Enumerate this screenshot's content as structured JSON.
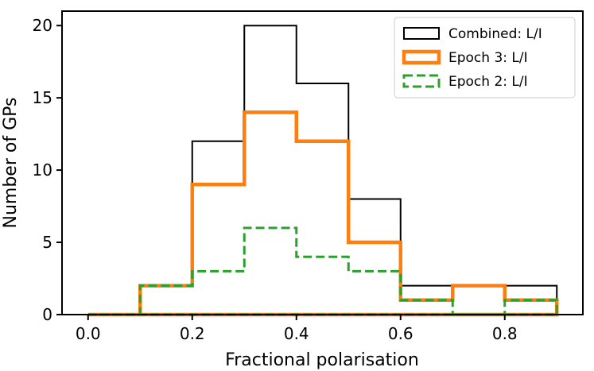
{
  "chart_data": {
    "type": "histogram",
    "xlabel": "Fractional polarisation",
    "ylabel": "Number of GPs",
    "xlim": [
      -0.05,
      0.95
    ],
    "ylim": [
      0,
      21
    ],
    "xticks": [
      0.0,
      0.2,
      0.4,
      0.6,
      0.8
    ],
    "xtick_labels": [
      "0.0",
      "0.2",
      "0.4",
      "0.6",
      "0.8"
    ],
    "yticks": [
      0,
      5,
      10,
      15,
      20
    ],
    "ytick_labels": [
      "0",
      "5",
      "10",
      "15",
      "20"
    ],
    "bin_edges": [
      0.0,
      0.1,
      0.2,
      0.3,
      0.4,
      0.5,
      0.6,
      0.7,
      0.8,
      0.9
    ],
    "legend_position": "top-right",
    "series": [
      {
        "name": "Combined: L/I",
        "counts": [
          0,
          2,
          12,
          20,
          16,
          8,
          2,
          2,
          2
        ],
        "color": "#000000",
        "style": "solid"
      },
      {
        "name": "Epoch 3: L/I",
        "counts": [
          0,
          2,
          9,
          14,
          12,
          5,
          1,
          2,
          1
        ],
        "color": "#ff7f0e",
        "style": "solid"
      },
      {
        "name": "Epoch 2: L/I",
        "counts": [
          0,
          2,
          3,
          6,
          4,
          3,
          1,
          0,
          1
        ],
        "color": "#2ca02c",
        "style": "dashed"
      }
    ]
  }
}
